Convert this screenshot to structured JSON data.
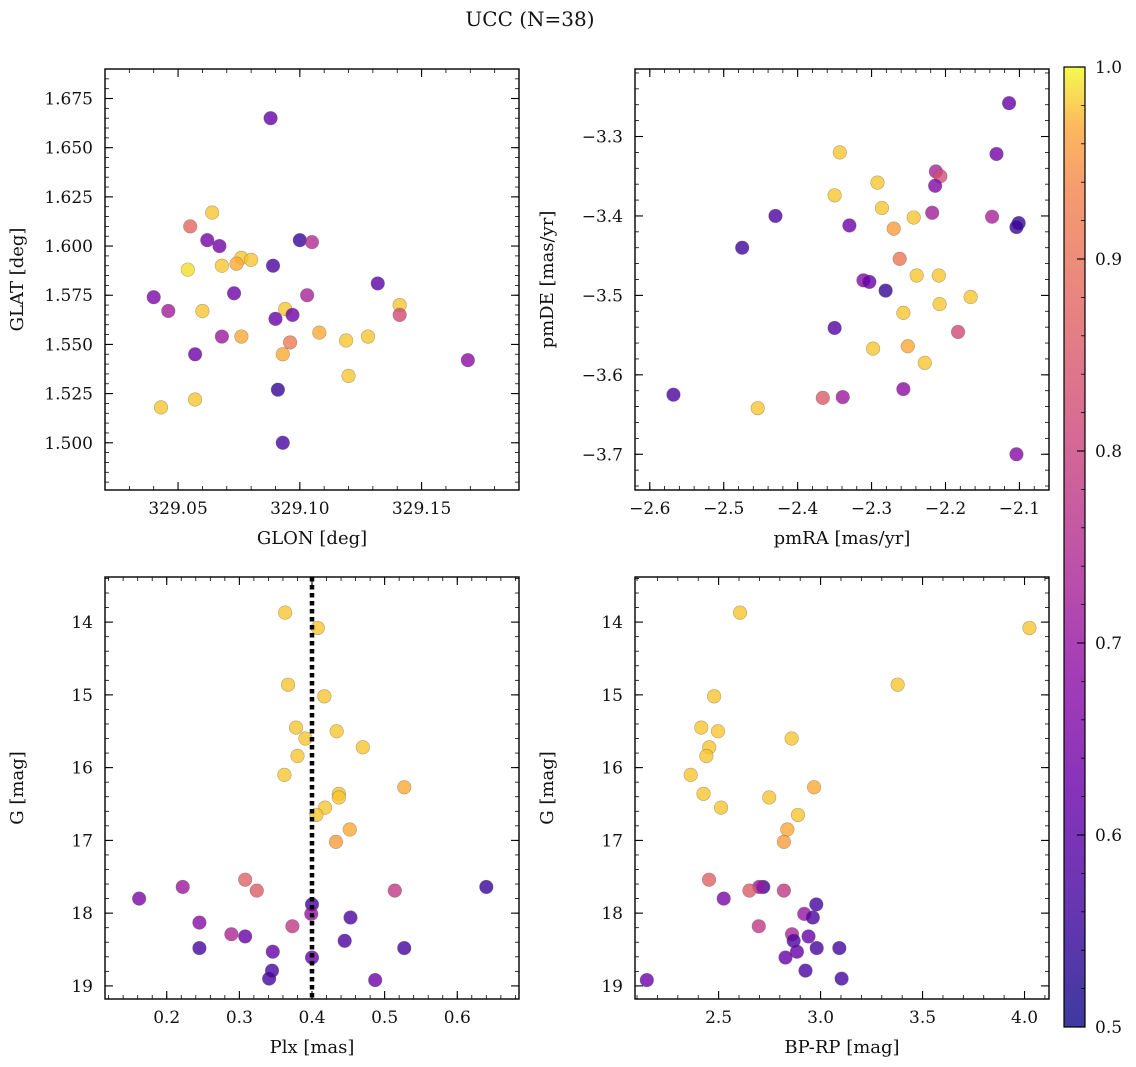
{
  "figure": {
    "title": "UCC (N=38)"
  },
  "colorbar": {
    "cmap": "plasma",
    "range": [
      0.5,
      1.0
    ],
    "ticks": [
      0.5,
      0.6,
      0.7,
      0.8,
      0.9,
      1.0
    ],
    "tick_labels": [
      "0.5",
      "0.6",
      "0.7",
      "0.8",
      "0.9",
      "1.0"
    ],
    "alpha": 0.8
  },
  "chart_data": [
    {
      "type": "scatter",
      "xlabel": "GLON [deg]",
      "ylabel": "GLAT [deg]",
      "xlim": [
        329.02,
        329.19
      ],
      "ylim": [
        1.476,
        1.69
      ],
      "y_inverted": false,
      "xticks": [
        329.05,
        329.1,
        329.15
      ],
      "xtick_labels": [
        "329.05",
        "329.10",
        "329.15"
      ],
      "yticks": [
        1.5,
        1.525,
        1.55,
        1.575,
        1.6,
        1.625,
        1.65,
        1.675
      ],
      "ytick_labels": [
        "1.500",
        "1.525",
        "1.550",
        "1.575",
        "1.600",
        "1.625",
        "1.650",
        "1.675"
      ],
      "points": [
        {
          "x": 329.088,
          "y": 1.665,
          "c": 0.62
        },
        {
          "x": 329.064,
          "y": 1.617,
          "c": 0.98
        },
        {
          "x": 329.055,
          "y": 1.61,
          "c": 0.88
        },
        {
          "x": 329.062,
          "y": 1.603,
          "c": 0.64
        },
        {
          "x": 329.067,
          "y": 1.6,
          "c": 0.64
        },
        {
          "x": 329.1,
          "y": 1.603,
          "c": 0.55
        },
        {
          "x": 329.105,
          "y": 1.602,
          "c": 0.75
        },
        {
          "x": 329.076,
          "y": 1.594,
          "c": 0.98
        },
        {
          "x": 329.08,
          "y": 1.593,
          "c": 0.98
        },
        {
          "x": 329.074,
          "y": 1.591,
          "c": 0.97
        },
        {
          "x": 329.068,
          "y": 1.59,
          "c": 0.98
        },
        {
          "x": 329.089,
          "y": 1.59,
          "c": 0.58
        },
        {
          "x": 329.054,
          "y": 1.588,
          "c": 0.99
        },
        {
          "x": 329.132,
          "y": 1.581,
          "c": 0.6
        },
        {
          "x": 329.073,
          "y": 1.576,
          "c": 0.63
        },
        {
          "x": 329.103,
          "y": 1.575,
          "c": 0.73
        },
        {
          "x": 329.04,
          "y": 1.574,
          "c": 0.65
        },
        {
          "x": 329.141,
          "y": 1.57,
          "c": 0.98
        },
        {
          "x": 329.094,
          "y": 1.568,
          "c": 0.98
        },
        {
          "x": 329.046,
          "y": 1.567,
          "c": 0.72
        },
        {
          "x": 329.06,
          "y": 1.567,
          "c": 0.98
        },
        {
          "x": 329.141,
          "y": 1.565,
          "c": 0.82
        },
        {
          "x": 329.097,
          "y": 1.565,
          "c": 0.63
        },
        {
          "x": 329.09,
          "y": 1.563,
          "c": 0.62
        },
        {
          "x": 329.108,
          "y": 1.556,
          "c": 0.97
        },
        {
          "x": 329.076,
          "y": 1.554,
          "c": 0.97
        },
        {
          "x": 329.068,
          "y": 1.554,
          "c": 0.71
        },
        {
          "x": 329.128,
          "y": 1.554,
          "c": 0.98
        },
        {
          "x": 329.119,
          "y": 1.552,
          "c": 0.98
        },
        {
          "x": 329.096,
          "y": 1.551,
          "c": 0.92
        },
        {
          "x": 329.057,
          "y": 1.545,
          "c": 0.63
        },
        {
          "x": 329.093,
          "y": 1.545,
          "c": 0.97
        },
        {
          "x": 329.169,
          "y": 1.542,
          "c": 0.68
        },
        {
          "x": 329.12,
          "y": 1.534,
          "c": 0.98
        },
        {
          "x": 329.091,
          "y": 1.527,
          "c": 0.55
        },
        {
          "x": 329.057,
          "y": 1.522,
          "c": 0.98
        },
        {
          "x": 329.043,
          "y": 1.518,
          "c": 0.98
        },
        {
          "x": 329.093,
          "y": 1.5,
          "c": 0.57
        }
      ]
    },
    {
      "type": "scatter",
      "xlabel": "pmRA [mas/yr]",
      "ylabel": "pmDE [mas/yr]",
      "xlim": [
        -2.62,
        -2.06
      ],
      "ylim": [
        -3.745,
        -3.215
      ],
      "y_inverted": false,
      "xticks": [
        -2.6,
        -2.5,
        -2.4,
        -2.3,
        -2.2,
        -2.1
      ],
      "xtick_labels": [
        "−2.6",
        "−2.5",
        "−2.4",
        "−2.3",
        "−2.2",
        "−2.1"
      ],
      "yticks": [
        -3.7,
        -3.6,
        -3.5,
        -3.4,
        -3.3
      ],
      "ytick_labels": [
        "−3.7",
        "−3.6",
        "−3.5",
        "−3.4",
        "−3.3"
      ],
      "points": [
        {
          "x": -2.114,
          "y": -3.258,
          "c": 0.62
        },
        {
          "x": -2.131,
          "y": -3.322,
          "c": 0.64
        },
        {
          "x": -2.343,
          "y": -3.32,
          "c": 0.98
        },
        {
          "x": -2.213,
          "y": -3.344,
          "c": 0.73
        },
        {
          "x": -2.207,
          "y": -3.35,
          "c": 0.83
        },
        {
          "x": -2.292,
          "y": -3.358,
          "c": 0.98
        },
        {
          "x": -2.214,
          "y": -3.362,
          "c": 0.66
        },
        {
          "x": -2.35,
          "y": -3.374,
          "c": 0.98
        },
        {
          "x": -2.286,
          "y": -3.39,
          "c": 0.98
        },
        {
          "x": -2.218,
          "y": -3.396,
          "c": 0.72
        },
        {
          "x": -2.137,
          "y": -3.401,
          "c": 0.73
        },
        {
          "x": -2.43,
          "y": -3.4,
          "c": 0.58
        },
        {
          "x": -2.243,
          "y": -3.402,
          "c": 0.98
        },
        {
          "x": -2.101,
          "y": -3.409,
          "c": 0.56
        },
        {
          "x": -2.104,
          "y": -3.414,
          "c": 0.55
        },
        {
          "x": -2.33,
          "y": -3.412,
          "c": 0.63
        },
        {
          "x": -2.27,
          "y": -3.416,
          "c": 0.96
        },
        {
          "x": -2.475,
          "y": -3.44,
          "c": 0.56
        },
        {
          "x": -2.262,
          "y": -3.454,
          "c": 0.91
        },
        {
          "x": -2.239,
          "y": -3.475,
          "c": 0.98
        },
        {
          "x": -2.209,
          "y": -3.475,
          "c": 0.98
        },
        {
          "x": -2.311,
          "y": -3.481,
          "c": 0.67
        },
        {
          "x": -2.303,
          "y": -3.483,
          "c": 0.62
        },
        {
          "x": -2.281,
          "y": -3.494,
          "c": 0.55
        },
        {
          "x": -2.166,
          "y": -3.502,
          "c": 0.98
        },
        {
          "x": -2.208,
          "y": -3.511,
          "c": 0.98
        },
        {
          "x": -2.257,
          "y": -3.522,
          "c": 0.98
        },
        {
          "x": -2.35,
          "y": -3.541,
          "c": 0.59
        },
        {
          "x": -2.183,
          "y": -3.546,
          "c": 0.82
        },
        {
          "x": -2.251,
          "y": -3.564,
          "c": 0.97
        },
        {
          "x": -2.298,
          "y": -3.567,
          "c": 0.98
        },
        {
          "x": -2.228,
          "y": -3.585,
          "c": 0.98
        },
        {
          "x": -2.257,
          "y": -3.618,
          "c": 0.68
        },
        {
          "x": -2.568,
          "y": -3.625,
          "c": 0.58
        },
        {
          "x": -2.366,
          "y": -3.629,
          "c": 0.86
        },
        {
          "x": -2.339,
          "y": -3.628,
          "c": 0.71
        },
        {
          "x": -2.454,
          "y": -3.642,
          "c": 0.98
        },
        {
          "x": -2.104,
          "y": -3.7,
          "c": 0.67
        }
      ]
    },
    {
      "type": "scatter",
      "xlabel": "Plx [mas]",
      "ylabel": "G [mag]",
      "xlim": [
        0.115,
        0.685
      ],
      "ylim": [
        19.18,
        13.38
      ],
      "y_inverted": true,
      "xticks": [
        0.2,
        0.3,
        0.4,
        0.5,
        0.6
      ],
      "xtick_labels": [
        "0.2",
        "0.3",
        "0.4",
        "0.5",
        "0.6"
      ],
      "yticks": [
        14,
        15,
        16,
        17,
        18,
        19
      ],
      "ytick_labels": [
        "14",
        "15",
        "16",
        "17",
        "18",
        "19"
      ],
      "vline": {
        "x": 0.4,
        "style": "dotted",
        "color": "#000000"
      },
      "points": [
        {
          "x": 0.363,
          "y": 13.87,
          "c": 0.98
        },
        {
          "x": 0.408,
          "y": 14.08,
          "c": 0.98
        },
        {
          "x": 0.367,
          "y": 14.86,
          "c": 0.98
        },
        {
          "x": 0.417,
          "y": 15.02,
          "c": 0.98
        },
        {
          "x": 0.378,
          "y": 15.45,
          "c": 0.98
        },
        {
          "x": 0.434,
          "y": 15.5,
          "c": 0.98
        },
        {
          "x": 0.391,
          "y": 15.6,
          "c": 0.98
        },
        {
          "x": 0.47,
          "y": 15.72,
          "c": 0.98
        },
        {
          "x": 0.38,
          "y": 15.84,
          "c": 0.98
        },
        {
          "x": 0.362,
          "y": 16.1,
          "c": 0.98
        },
        {
          "x": 0.527,
          "y": 16.27,
          "c": 0.97
        },
        {
          "x": 0.437,
          "y": 16.36,
          "c": 0.98
        },
        {
          "x": 0.437,
          "y": 16.41,
          "c": 0.98
        },
        {
          "x": 0.418,
          "y": 16.55,
          "c": 0.98
        },
        {
          "x": 0.406,
          "y": 16.65,
          "c": 0.98
        },
        {
          "x": 0.452,
          "y": 16.85,
          "c": 0.97
        },
        {
          "x": 0.433,
          "y": 17.02,
          "c": 0.96
        },
        {
          "x": 0.308,
          "y": 17.54,
          "c": 0.87
        },
        {
          "x": 0.64,
          "y": 17.64,
          "c": 0.55
        },
        {
          "x": 0.222,
          "y": 17.64,
          "c": 0.71
        },
        {
          "x": 0.324,
          "y": 17.69,
          "c": 0.86
        },
        {
          "x": 0.514,
          "y": 17.69,
          "c": 0.78
        },
        {
          "x": 0.162,
          "y": 17.8,
          "c": 0.65
        },
        {
          "x": 0.4,
          "y": 17.88,
          "c": 0.57
        },
        {
          "x": 0.399,
          "y": 18.01,
          "c": 0.7
        },
        {
          "x": 0.453,
          "y": 18.06,
          "c": 0.58
        },
        {
          "x": 0.245,
          "y": 18.13,
          "c": 0.68
        },
        {
          "x": 0.373,
          "y": 18.18,
          "c": 0.78
        },
        {
          "x": 0.289,
          "y": 18.29,
          "c": 0.74
        },
        {
          "x": 0.308,
          "y": 18.32,
          "c": 0.62
        },
        {
          "x": 0.445,
          "y": 18.38,
          "c": 0.58
        },
        {
          "x": 0.245,
          "y": 18.48,
          "c": 0.57
        },
        {
          "x": 0.527,
          "y": 18.48,
          "c": 0.57
        },
        {
          "x": 0.346,
          "y": 18.53,
          "c": 0.62
        },
        {
          "x": 0.4,
          "y": 18.61,
          "c": 0.62
        },
        {
          "x": 0.345,
          "y": 18.79,
          "c": 0.58
        },
        {
          "x": 0.341,
          "y": 18.9,
          "c": 0.57
        },
        {
          "x": 0.487,
          "y": 18.92,
          "c": 0.63
        }
      ]
    },
    {
      "type": "scatter",
      "xlabel": "BP-RP [mag]",
      "ylabel": "G [mag]",
      "xlim": [
        2.09,
        4.12
      ],
      "ylim": [
        19.18,
        13.38
      ],
      "y_inverted": true,
      "xticks": [
        2.5,
        3.0,
        3.5,
        4.0
      ],
      "xtick_labels": [
        "2.5",
        "3.0",
        "3.5",
        "4.0"
      ],
      "yticks": [
        14,
        15,
        16,
        17,
        18,
        19
      ],
      "ytick_labels": [
        "14",
        "15",
        "16",
        "17",
        "18",
        "19"
      ],
      "points": [
        {
          "x": 2.605,
          "y": 13.87,
          "c": 0.98
        },
        {
          "x": 4.024,
          "y": 14.08,
          "c": 0.98
        },
        {
          "x": 3.378,
          "y": 14.86,
          "c": 0.98
        },
        {
          "x": 2.478,
          "y": 15.02,
          "c": 0.98
        },
        {
          "x": 2.415,
          "y": 15.45,
          "c": 0.98
        },
        {
          "x": 2.497,
          "y": 15.5,
          "c": 0.98
        },
        {
          "x": 2.858,
          "y": 15.6,
          "c": 0.98
        },
        {
          "x": 2.454,
          "y": 15.72,
          "c": 0.98
        },
        {
          "x": 2.44,
          "y": 15.84,
          "c": 0.98
        },
        {
          "x": 2.363,
          "y": 16.1,
          "c": 0.98
        },
        {
          "x": 2.968,
          "y": 16.27,
          "c": 0.97
        },
        {
          "x": 2.426,
          "y": 16.36,
          "c": 0.98
        },
        {
          "x": 2.748,
          "y": 16.41,
          "c": 0.98
        },
        {
          "x": 2.512,
          "y": 16.55,
          "c": 0.98
        },
        {
          "x": 2.889,
          "y": 16.65,
          "c": 0.98
        },
        {
          "x": 2.837,
          "y": 16.85,
          "c": 0.97
        },
        {
          "x": 2.82,
          "y": 17.02,
          "c": 0.96
        },
        {
          "x": 2.453,
          "y": 17.54,
          "c": 0.87
        },
        {
          "x": 2.719,
          "y": 17.64,
          "c": 0.55
        },
        {
          "x": 2.699,
          "y": 17.64,
          "c": 0.71
        },
        {
          "x": 2.651,
          "y": 17.69,
          "c": 0.86
        },
        {
          "x": 2.82,
          "y": 17.69,
          "c": 0.78
        },
        {
          "x": 2.525,
          "y": 17.8,
          "c": 0.65
        },
        {
          "x": 2.979,
          "y": 17.88,
          "c": 0.57
        },
        {
          "x": 2.92,
          "y": 18.01,
          "c": 0.7
        },
        {
          "x": 2.962,
          "y": 18.06,
          "c": 0.58
        },
        {
          "x": 2.697,
          "y": 18.18,
          "c": 0.78
        },
        {
          "x": 2.86,
          "y": 18.29,
          "c": 0.74
        },
        {
          "x": 2.941,
          "y": 18.32,
          "c": 0.62
        },
        {
          "x": 2.868,
          "y": 18.38,
          "c": 0.58
        },
        {
          "x": 3.092,
          "y": 18.48,
          "c": 0.57
        },
        {
          "x": 2.981,
          "y": 18.48,
          "c": 0.57
        },
        {
          "x": 2.884,
          "y": 18.53,
          "c": 0.62
        },
        {
          "x": 2.828,
          "y": 18.61,
          "c": 0.62
        },
        {
          "x": 2.926,
          "y": 18.79,
          "c": 0.58
        },
        {
          "x": 3.103,
          "y": 18.9,
          "c": 0.57
        },
        {
          "x": 2.148,
          "y": 18.92,
          "c": 0.63
        }
      ]
    }
  ]
}
